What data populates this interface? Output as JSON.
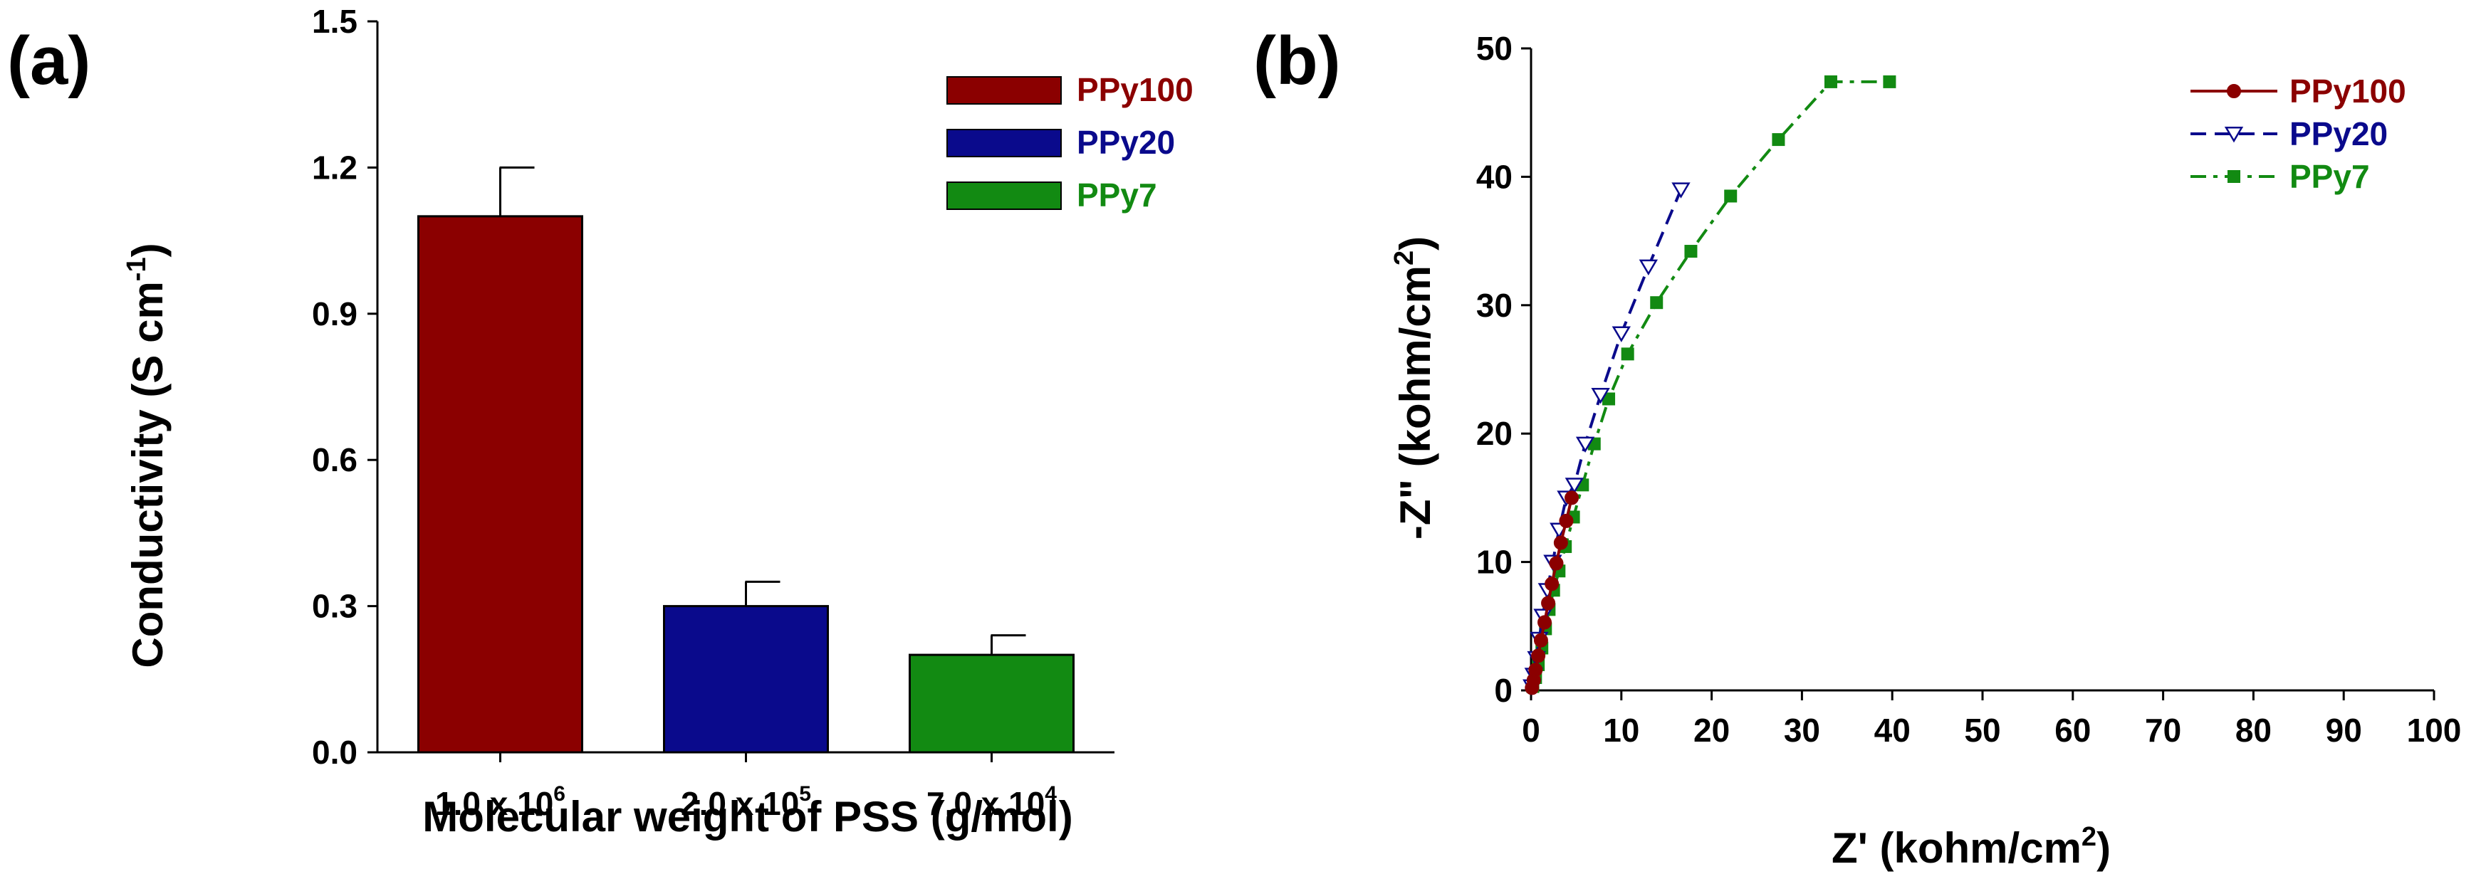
{
  "colors": {
    "axis": "#000000",
    "ppy100": "#8B0000",
    "ppy20": "#0A0A8C",
    "ppy7": "#128A12",
    "ppy20_marker_fill": "#ffffff"
  },
  "chart_data": [
    {
      "panel_label": "(a)",
      "type": "bar",
      "categories": [
        {
          "base": "1.0 x 10",
          "exp": "6"
        },
        {
          "base": "2.0 x 10",
          "exp": "5"
        },
        {
          "base": "7.0 x 10",
          "exp": "4"
        }
      ],
      "series": [
        {
          "name": "PPy100",
          "value": 1.1,
          "error": 0.1,
          "color_key": "ppy100"
        },
        {
          "name": "PPy20",
          "value": 0.3,
          "error": 0.05,
          "color_key": "ppy20"
        },
        {
          "name": "PPy7",
          "value": 0.2,
          "error": 0.04,
          "color_key": "ppy7"
        }
      ],
      "xlabel": "Molecular weight of PSS (g/mol)",
      "ylabel": {
        "main": "Conductivity (S cm",
        "exp": "-1",
        "close": ")"
      },
      "ylim": [
        0,
        1.5
      ],
      "yticks": [
        "0.0",
        "0.3",
        "0.6",
        "0.9",
        "1.2",
        "1.5"
      ],
      "legend": [
        "PPy100",
        "PPy20",
        "PPy7"
      ],
      "legend_position": "top-right"
    },
    {
      "panel_label": "(b)",
      "type": "line",
      "xlabel": {
        "main": "Z' (kohm/cm",
        "exp": "2",
        "close": ")"
      },
      "ylabel": {
        "main": "-Z\" (kohm/cm",
        "exp": "2",
        "close": ")"
      },
      "xlim": [
        0,
        100
      ],
      "ylim": [
        0,
        50
      ],
      "xticks": [
        "0",
        "10",
        "20",
        "30",
        "40",
        "50",
        "60",
        "70",
        "80",
        "90",
        "100"
      ],
      "yticks": [
        "0",
        "10",
        "20",
        "30",
        "40",
        "50"
      ],
      "legend_position": "top-right",
      "series": [
        {
          "name": "PPy100",
          "marker": "circle",
          "line": "solid",
          "color_key": "ppy100",
          "x": [
            0.1,
            0.3,
            0.5,
            0.8,
            1.1,
            1.5,
            1.9,
            2.3,
            2.8,
            3.3,
            3.9,
            4.5
          ],
          "y": [
            0.2,
            0.8,
            1.6,
            2.7,
            3.9,
            5.3,
            6.8,
            8.3,
            9.9,
            11.5,
            13.2,
            15.0
          ]
        },
        {
          "name": "PPy20",
          "marker": "triangle-down",
          "line": "long-dash",
          "color_key": "ppy20",
          "x": [
            0.1,
            0.3,
            0.6,
            0.9,
            1.3,
            1.8,
            2.4,
            3.1,
            3.9,
            4.8,
            6.0,
            7.7,
            10.0,
            13.0,
            16.6
          ],
          "y": [
            0.3,
            1.2,
            2.5,
            4.0,
            5.8,
            7.8,
            10.0,
            12.5,
            15.0,
            16.0,
            19.2,
            23.0,
            27.8,
            33.0,
            39.0
          ]
        },
        {
          "name": "PPy7",
          "marker": "square",
          "line": "dash-dot",
          "color_key": "ppy7",
          "x": [
            0.2,
            0.5,
            0.8,
            1.2,
            1.6,
            2.0,
            2.5,
            3.1,
            3.8,
            4.7,
            5.7,
            7.0,
            8.6,
            10.7,
            13.9,
            17.7,
            22.1,
            27.4,
            33.2,
            39.7
          ],
          "y": [
            0.3,
            1.0,
            2.0,
            3.3,
            4.8,
            6.3,
            7.8,
            9.3,
            11.2,
            13.5,
            16.0,
            19.2,
            22.7,
            26.2,
            30.2,
            34.2,
            38.5,
            42.9,
            47.4,
            47.4
          ]
        }
      ]
    }
  ]
}
